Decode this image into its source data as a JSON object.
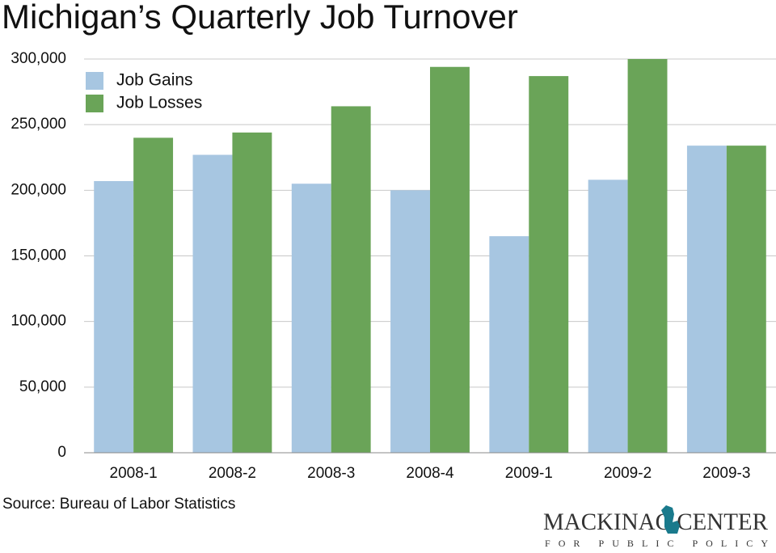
{
  "chart_data": {
    "type": "bar",
    "title": "Michigan’s Quarterly Job Turnover",
    "categories": [
      "2008-1",
      "2008-2",
      "2008-3",
      "2008-4",
      "2009-1",
      "2009-2",
      "2009-3"
    ],
    "series": [
      {
        "name": "Job Gains",
        "color": "#a7c6e1",
        "values": [
          207000,
          227000,
          205000,
          200000,
          165000,
          208000,
          234000
        ]
      },
      {
        "name": "Job Losses",
        "color": "#6aa458",
        "values": [
          240000,
          244000,
          264000,
          294000,
          287000,
          300000,
          234000
        ]
      }
    ],
    "ylim": [
      0,
      300000
    ],
    "yticks": [
      0,
      {
        "value": 50000,
        "label": "50,000"
      },
      {
        "value": 100000,
        "label": "100,000"
      },
      {
        "value": 150000,
        "label": "150,000"
      },
      {
        "value": 200000,
        "label": "200,000"
      },
      {
        "value": 250000,
        "label": "250,000"
      },
      {
        "value": 300000,
        "label": "300,000"
      }
    ],
    "grid": true,
    "legend": "top-left",
    "source": "Source: Bureau of Labor Statistics",
    "logo": {
      "name": "MACKINAC CENTER",
      "tagline": "FOR PUBLIC POLICY"
    }
  }
}
